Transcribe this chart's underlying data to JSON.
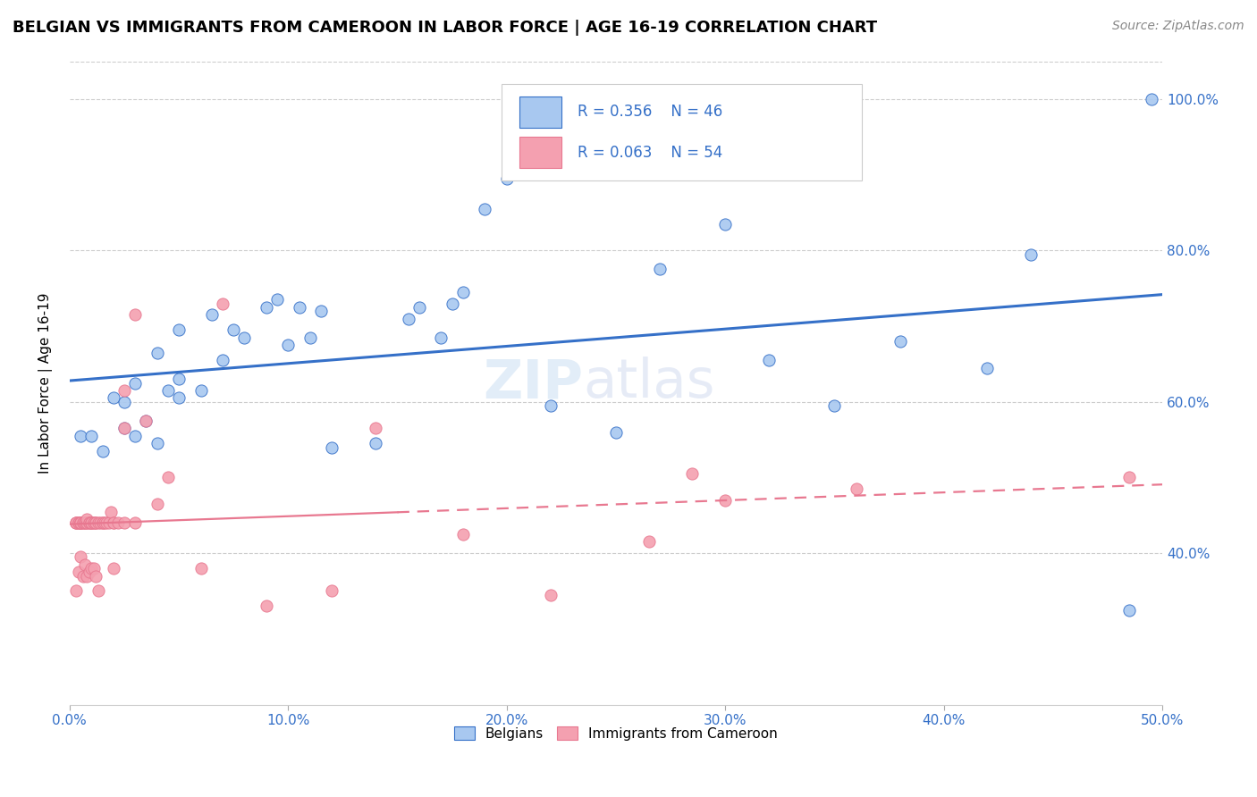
{
  "title": "BELGIAN VS IMMIGRANTS FROM CAMEROON IN LABOR FORCE | AGE 16-19 CORRELATION CHART",
  "source": "Source: ZipAtlas.com",
  "ylabel": "In Labor Force | Age 16-19",
  "xlim": [
    0.0,
    0.5
  ],
  "ylim": [
    0.2,
    1.05
  ],
  "xtick_labels": [
    "0.0%",
    "10.0%",
    "20.0%",
    "30.0%",
    "40.0%",
    "50.0%"
  ],
  "xtick_vals": [
    0.0,
    0.1,
    0.2,
    0.3,
    0.4,
    0.5
  ],
  "ytick_labels": [
    "40.0%",
    "60.0%",
    "80.0%",
    "100.0%"
  ],
  "ytick_vals": [
    0.4,
    0.6,
    0.8,
    1.0
  ],
  "belgian_color": "#a8c8f0",
  "cameroon_color": "#f4a0b0",
  "line_belgian_color": "#3570c8",
  "line_cameroon_color": "#e87890",
  "watermark": "ZIPatlas",
  "belgian_x": [
    0.005,
    0.01,
    0.015,
    0.02,
    0.025,
    0.025,
    0.03,
    0.03,
    0.035,
    0.04,
    0.04,
    0.045,
    0.05,
    0.05,
    0.05,
    0.06,
    0.065,
    0.07,
    0.075,
    0.08,
    0.09,
    0.095,
    0.1,
    0.105,
    0.11,
    0.115,
    0.12,
    0.14,
    0.155,
    0.16,
    0.17,
    0.175,
    0.18,
    0.19,
    0.2,
    0.22,
    0.25,
    0.27,
    0.3,
    0.32,
    0.35,
    0.38,
    0.42,
    0.44,
    0.485,
    0.495
  ],
  "belgian_y": [
    0.555,
    0.555,
    0.535,
    0.605,
    0.565,
    0.6,
    0.555,
    0.625,
    0.575,
    0.545,
    0.665,
    0.615,
    0.605,
    0.63,
    0.695,
    0.615,
    0.715,
    0.655,
    0.695,
    0.685,
    0.725,
    0.735,
    0.675,
    0.725,
    0.685,
    0.72,
    0.54,
    0.545,
    0.71,
    0.725,
    0.685,
    0.73,
    0.745,
    0.855,
    0.895,
    0.595,
    0.56,
    0.775,
    0.835,
    0.655,
    0.595,
    0.68,
    0.645,
    0.795,
    0.325,
    1.0
  ],
  "cameroon_x": [
    0.003,
    0.003,
    0.003,
    0.004,
    0.004,
    0.005,
    0.005,
    0.005,
    0.005,
    0.006,
    0.006,
    0.007,
    0.007,
    0.008,
    0.008,
    0.008,
    0.009,
    0.009,
    0.01,
    0.01,
    0.01,
    0.011,
    0.011,
    0.012,
    0.012,
    0.013,
    0.014,
    0.015,
    0.015,
    0.016,
    0.017,
    0.018,
    0.019,
    0.02,
    0.02,
    0.022,
    0.025,
    0.025,
    0.03,
    0.035,
    0.04,
    0.045,
    0.06,
    0.07,
    0.09,
    0.12,
    0.14,
    0.18,
    0.22,
    0.265,
    0.285,
    0.3,
    0.36,
    0.485
  ],
  "cameroon_y": [
    0.44,
    0.44,
    0.44,
    0.44,
    0.44,
    0.44,
    0.44,
    0.44,
    0.44,
    0.44,
    0.44,
    0.44,
    0.44,
    0.44,
    0.44,
    0.445,
    0.44,
    0.44,
    0.44,
    0.44,
    0.44,
    0.44,
    0.44,
    0.44,
    0.44,
    0.44,
    0.44,
    0.44,
    0.44,
    0.44,
    0.44,
    0.44,
    0.455,
    0.44,
    0.44,
    0.44,
    0.615,
    0.565,
    0.715,
    0.575,
    0.465,
    0.5,
    0.38,
    0.73,
    0.33,
    0.35,
    0.565,
    0.425,
    0.345,
    0.415,
    0.505,
    0.47,
    0.485,
    0.5
  ],
  "cameroon_extra_x": [
    0.003,
    0.004,
    0.005,
    0.006,
    0.007,
    0.008,
    0.009,
    0.01,
    0.011,
    0.012,
    0.013,
    0.02,
    0.025,
    0.03
  ],
  "cameroon_extra_y": [
    0.35,
    0.375,
    0.395,
    0.37,
    0.385,
    0.37,
    0.375,
    0.38,
    0.38,
    0.37,
    0.35,
    0.38,
    0.44,
    0.44
  ]
}
